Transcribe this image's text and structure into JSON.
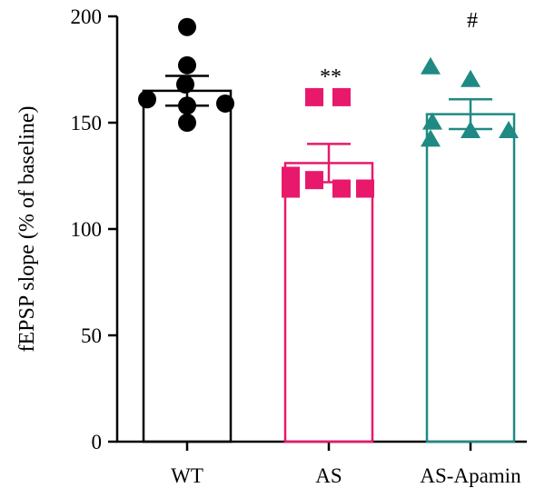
{
  "chart_data": {
    "type": "bar",
    "ylabel": "fEPSP slope (% of baseline)",
    "xlabel": "",
    "ylim": [
      0,
      200
    ],
    "yticks": [
      0,
      50,
      100,
      150,
      200
    ],
    "grid": false,
    "categories": [
      "WT",
      "AS",
      "AS-Apamin"
    ],
    "series": [
      {
        "category": "WT",
        "mean": 165,
        "sem": 7,
        "color": "#000000",
        "marker": "circle",
        "points": [
          195,
          177,
          168,
          161,
          158,
          159,
          150
        ],
        "annotation": ""
      },
      {
        "category": "AS",
        "mean": 131,
        "sem": 9,
        "color": "#e8196b",
        "marker": "square",
        "points": [
          162,
          162,
          125,
          123,
          119,
          119,
          119
        ],
        "annotation": "**"
      },
      {
        "category": "AS-Apamin",
        "mean": 154,
        "sem": 7,
        "color": "#1f8a83",
        "marker": "triangle",
        "points": [
          176,
          170,
          150,
          146,
          146,
          142
        ],
        "annotation": "#"
      }
    ]
  }
}
